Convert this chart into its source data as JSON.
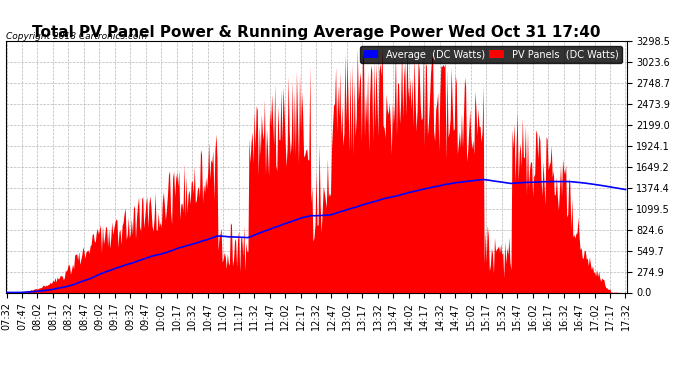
{
  "title": "Total PV Panel Power & Running Average Power Wed Oct 31 17:40",
  "copyright": "Copyright 2018 Cartronics.com",
  "ylabel_values": [
    0.0,
    274.9,
    549.7,
    824.6,
    1099.5,
    1374.4,
    1649.2,
    1924.1,
    2199.0,
    2473.9,
    2748.7,
    3023.6,
    3298.5
  ],
  "ymax": 3298.5,
  "ymin": 0.0,
  "legend_avg_label": "Average  (DC Watts)",
  "legend_pv_label": "PV Panels  (DC Watts)",
  "avg_color": "#0000ff",
  "pv_color": "#ff0000",
  "bg_color": "#ffffff",
  "grid_color": "#b0b0b0",
  "title_fontsize": 11,
  "tick_fontsize": 7,
  "n_minutes": 601,
  "label_interval": 15
}
